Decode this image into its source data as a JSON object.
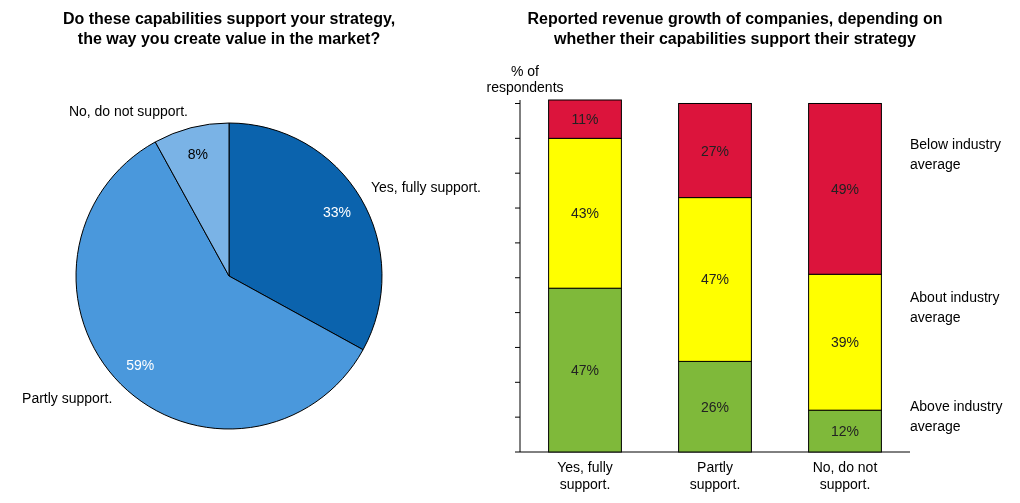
{
  "chart_data": [
    {
      "type": "pie",
      "title": "Do these capabilities support your strategy, the way you create value in the market?",
      "categories": [
        "Yes, fully support.",
        "Partly support.",
        "No, do not support."
      ],
      "values": [
        33,
        59,
        8
      ],
      "value_labels": [
        "33%",
        "59%",
        "8%"
      ],
      "colors": [
        "#0b63ad",
        "#4a98dc",
        "#7ab3e6"
      ]
    },
    {
      "type": "bar",
      "title": "Reported revenue growth of companies, depending on whether their capabilities support their strategy",
      "ylabel": "% of respondents",
      "categories": [
        "Yes, fully support.",
        "Partly support.",
        "No, do not support."
      ],
      "stacked": true,
      "ylim": [
        0,
        101
      ],
      "yticks": [
        {
          "value": 0,
          "label": null
        },
        {
          "value": 10,
          "label": null
        },
        {
          "value": 20,
          "label": null
        },
        {
          "value": 30,
          "label": null
        },
        {
          "value": 40,
          "label": null
        },
        {
          "value": 50,
          "label": null
        },
        {
          "value": 60,
          "label": null
        },
        {
          "value": 70,
          "label": null
        },
        {
          "value": 80,
          "label": null
        },
        {
          "value": 90,
          "label": null
        },
        {
          "value": 100,
          "label": null
        }
      ],
      "tick_labels": "x",
      "legend": "right",
      "series": [
        {
          "name": "Above industry average",
          "color": "#7fb93a",
          "values": [
            47,
            26,
            12
          ],
          "value_labels": [
            "47%",
            "26%",
            "12%"
          ]
        },
        {
          "name": "About industry average",
          "color": "#ffff00",
          "values": [
            43,
            47,
            39
          ],
          "value_labels": [
            "43%",
            "47%",
            "39%"
          ]
        },
        {
          "name": "Below industry average",
          "color": "#dc143c",
          "values": [
            11,
            27,
            49
          ],
          "value_labels": [
            "11%",
            "27%",
            "49%"
          ]
        }
      ]
    }
  ]
}
